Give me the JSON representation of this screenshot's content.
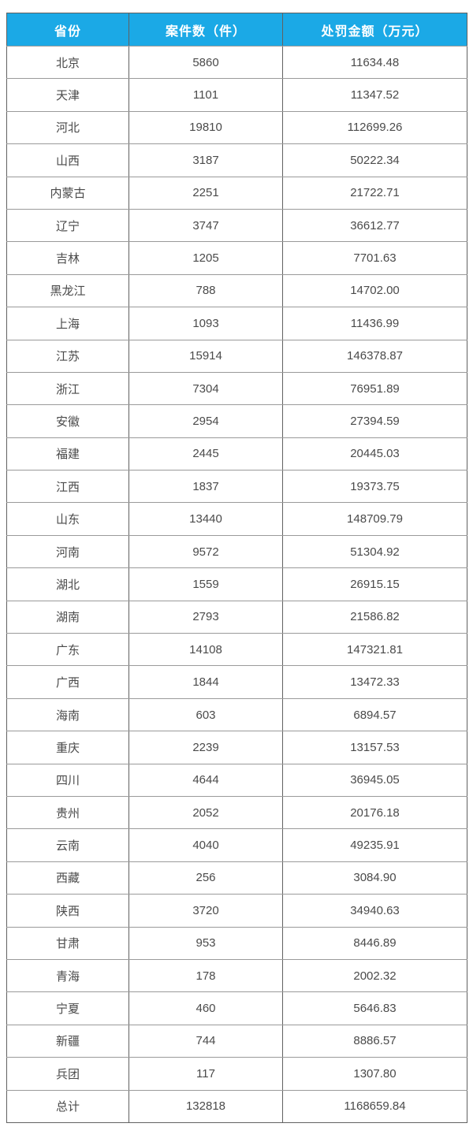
{
  "chart_data": {
    "type": "table",
    "columns": [
      "省份",
      "案件数（件）",
      "处罚金额（万元）"
    ],
    "rows": [
      [
        "北京",
        "5860",
        "11634.48"
      ],
      [
        "天津",
        "1101",
        "11347.52"
      ],
      [
        "河北",
        "19810",
        "112699.26"
      ],
      [
        "山西",
        "3187",
        "50222.34"
      ],
      [
        "内蒙古",
        "2251",
        "21722.71"
      ],
      [
        "辽宁",
        "3747",
        "36612.77"
      ],
      [
        "吉林",
        "1205",
        "7701.63"
      ],
      [
        "黑龙江",
        "788",
        "14702.00"
      ],
      [
        "上海",
        "1093",
        "11436.99"
      ],
      [
        "江苏",
        "15914",
        "146378.87"
      ],
      [
        "浙江",
        "7304",
        "76951.89"
      ],
      [
        "安徽",
        "2954",
        "27394.59"
      ],
      [
        "福建",
        "2445",
        "20445.03"
      ],
      [
        "江西",
        "1837",
        "19373.75"
      ],
      [
        "山东",
        "13440",
        "148709.79"
      ],
      [
        "河南",
        "9572",
        "51304.92"
      ],
      [
        "湖北",
        "1559",
        "26915.15"
      ],
      [
        "湖南",
        "2793",
        "21586.82"
      ],
      [
        "广东",
        "14108",
        "147321.81"
      ],
      [
        "广西",
        "1844",
        "13472.33"
      ],
      [
        "海南",
        "603",
        "6894.57"
      ],
      [
        "重庆",
        "2239",
        "13157.53"
      ],
      [
        "四川",
        "4644",
        "36945.05"
      ],
      [
        "贵州",
        "2052",
        "20176.18"
      ],
      [
        "云南",
        "4040",
        "49235.91"
      ],
      [
        "西藏",
        "256",
        "3084.90"
      ],
      [
        "陕西",
        "3720",
        "34940.63"
      ],
      [
        "甘肃",
        "953",
        "8446.89"
      ],
      [
        "青海",
        "178",
        "2002.32"
      ],
      [
        "宁夏",
        "460",
        "5646.83"
      ],
      [
        "新疆",
        "744",
        "8886.57"
      ],
      [
        "兵团",
        "117",
        "1307.80"
      ],
      [
        "总计",
        "132818",
        "1168659.84"
      ]
    ],
    "title": "",
    "layout": {
      "grid": true,
      "header_row": true,
      "total_row_label": "总计"
    }
  },
  "colors": {
    "header_bg": "#1BA9E6",
    "header_text": "#FFFFFF",
    "body_text": "#4A4A4A",
    "border_vertical": "#616161",
    "border_horizontal": "#9A9A9A"
  }
}
